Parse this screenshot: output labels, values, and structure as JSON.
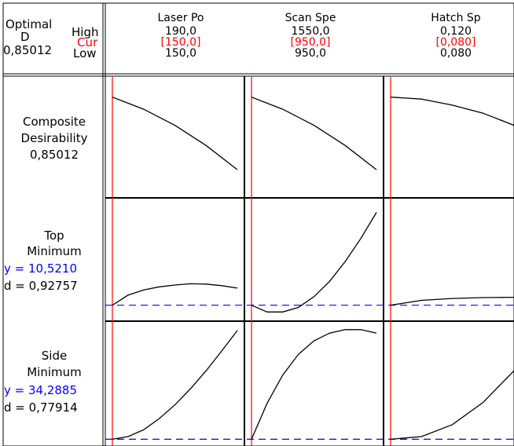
{
  "header": {
    "optimal_label": "Optimal",
    "d_label": "D",
    "d_value": "0,85012",
    "high_label": "High",
    "cur_label": "Cur",
    "low_label": "Low"
  },
  "factors": [
    {
      "name": "Laser Po",
      "high": "190,0",
      "cur": "[150,0]",
      "low": "150,0"
    },
    {
      "name": "Scan Spe",
      "high": "1550,0",
      "cur": "[950,0]",
      "low": "950,0"
    },
    {
      "name": "Hatch Sp",
      "high": "0,120",
      "cur": "[0,080]",
      "low": "0,080"
    }
  ],
  "responses": [
    {
      "line1": "Composite",
      "line2": "Desirability",
      "line3": "0,85012",
      "y_text": "",
      "d_text": ""
    },
    {
      "line1": "Top",
      "line2": "Minimum",
      "line3": "",
      "y_text": "y = 10,5210",
      "d_text": "d = 0,92757"
    },
    {
      "line1": "Side",
      "line2": "Minimum",
      "line3": "",
      "y_text": "y = 34,2885",
      "d_text": "d = 0,77914"
    }
  ],
  "colors": {
    "current_line": "#ff0000",
    "optimal_y_line": "#0000ff",
    "y_text": "#0000ff",
    "cur_text": "#ff0000",
    "curve": "#000000"
  },
  "chart_data": {
    "type": "line",
    "curves": [
      {
        "response": "Composite Desirability",
        "factor": "Laser Po",
        "x": [
          150,
          160,
          170,
          180,
          190
        ],
        "y": [
          0.85,
          0.82,
          0.78,
          0.73,
          0.67
        ]
      },
      {
        "response": "Composite Desirability",
        "factor": "Scan Spe",
        "x": [
          950,
          1100,
          1250,
          1400,
          1550
        ],
        "y": [
          0.85,
          0.82,
          0.78,
          0.73,
          0.67
        ]
      },
      {
        "response": "Composite Desirability",
        "factor": "Hatch Sp",
        "x": [
          0.08,
          0.09,
          0.1,
          0.11,
          0.12
        ],
        "y": [
          0.85,
          0.845,
          0.83,
          0.81,
          0.78
        ]
      },
      {
        "response": "Top Minimum",
        "factor": "Laser Po",
        "x": [
          150,
          155,
          160,
          165,
          170,
          175,
          180,
          185,
          190
        ],
        "y": [
          10.52,
          10.85,
          11.02,
          11.12,
          11.18,
          11.22,
          11.21,
          11.16,
          11.08
        ]
      },
      {
        "response": "Top Minimum",
        "factor": "Scan Spe",
        "x": [
          950,
          1025,
          1100,
          1175,
          1250,
          1325,
          1400,
          1475,
          1550
        ],
        "y": [
          10.52,
          10.3,
          10.3,
          10.45,
          10.8,
          11.3,
          11.95,
          12.7,
          13.55
        ]
      },
      {
        "response": "Top Minimum",
        "factor": "Hatch Sp",
        "x": [
          0.08,
          0.09,
          0.1,
          0.11,
          0.12
        ],
        "y": [
          10.52,
          10.68,
          10.74,
          10.77,
          10.78
        ]
      },
      {
        "response": "Side Minimum",
        "factor": "Laser Po",
        "x": [
          150,
          155,
          160,
          165,
          170,
          175,
          180,
          185,
          190
        ],
        "y": [
          34.29,
          34.6,
          35.4,
          36.7,
          38.3,
          40.2,
          42.3,
          44.6,
          47
        ]
      },
      {
        "response": "Side Minimum",
        "factor": "Scan Spe",
        "x": [
          950,
          1025,
          1100,
          1175,
          1250,
          1325,
          1400,
          1475,
          1550
        ],
        "y": [
          34.29,
          38.5,
          41.8,
          44.2,
          45.8,
          46.7,
          47.1,
          47.1,
          46.7
        ]
      },
      {
        "response": "Side Minimum",
        "factor": "Hatch Sp",
        "x": [
          0.08,
          0.09,
          0.1,
          0.11,
          0.12
        ],
        "y": [
          34.29,
          34.6,
          36,
          38.6,
          42.3
        ]
      }
    ],
    "optimal_y": [
      0.85012,
      10.521,
      34.2885
    ],
    "current_x": [
      150,
      950,
      0.08
    ],
    "x_ranges": [
      [
        150,
        190
      ],
      [
        950,
        1550
      ],
      [
        0.08,
        0.12
      ]
    ],
    "y_ranges": [
      [
        0.6,
        0.9
      ],
      [
        10,
        14
      ],
      [
        33.5,
        48
      ]
    ]
  }
}
